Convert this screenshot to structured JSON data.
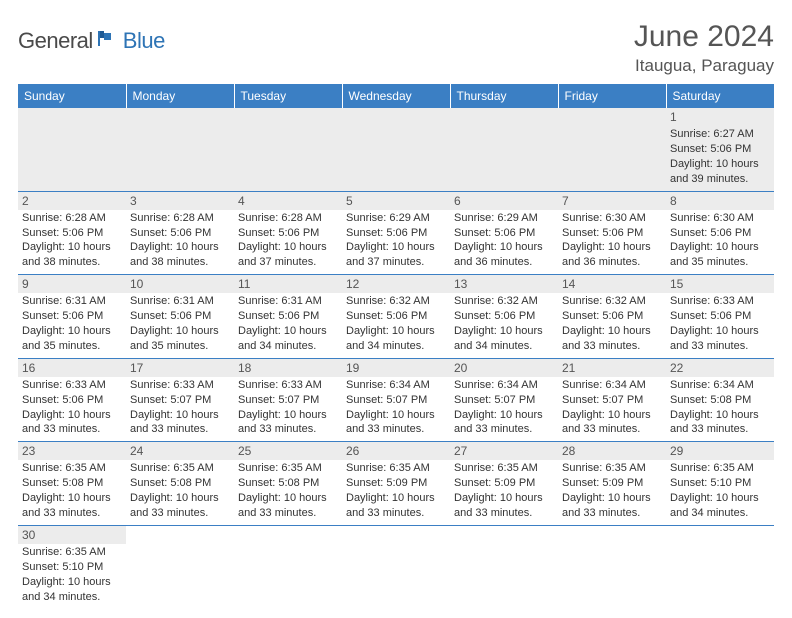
{
  "brand": {
    "part1": "General",
    "part2": "Blue"
  },
  "title": "June 2024",
  "location": "Itaugua, Paraguay",
  "header_bg": "#3b7fc4",
  "days": [
    "Sunday",
    "Monday",
    "Tuesday",
    "Wednesday",
    "Thursday",
    "Friday",
    "Saturday"
  ],
  "weeks": [
    [
      null,
      null,
      null,
      null,
      null,
      null,
      {
        "n": "1",
        "sr": "Sunrise: 6:27 AM",
        "ss": "Sunset: 5:06 PM",
        "d1": "Daylight: 10 hours",
        "d2": "and 39 minutes."
      }
    ],
    [
      {
        "n": "2",
        "sr": "Sunrise: 6:28 AM",
        "ss": "Sunset: 5:06 PM",
        "d1": "Daylight: 10 hours",
        "d2": "and 38 minutes."
      },
      {
        "n": "3",
        "sr": "Sunrise: 6:28 AM",
        "ss": "Sunset: 5:06 PM",
        "d1": "Daylight: 10 hours",
        "d2": "and 38 minutes."
      },
      {
        "n": "4",
        "sr": "Sunrise: 6:28 AM",
        "ss": "Sunset: 5:06 PM",
        "d1": "Daylight: 10 hours",
        "d2": "and 37 minutes."
      },
      {
        "n": "5",
        "sr": "Sunrise: 6:29 AM",
        "ss": "Sunset: 5:06 PM",
        "d1": "Daylight: 10 hours",
        "d2": "and 37 minutes."
      },
      {
        "n": "6",
        "sr": "Sunrise: 6:29 AM",
        "ss": "Sunset: 5:06 PM",
        "d1": "Daylight: 10 hours",
        "d2": "and 36 minutes."
      },
      {
        "n": "7",
        "sr": "Sunrise: 6:30 AM",
        "ss": "Sunset: 5:06 PM",
        "d1": "Daylight: 10 hours",
        "d2": "and 36 minutes."
      },
      {
        "n": "8",
        "sr": "Sunrise: 6:30 AM",
        "ss": "Sunset: 5:06 PM",
        "d1": "Daylight: 10 hours",
        "d2": "and 35 minutes."
      }
    ],
    [
      {
        "n": "9",
        "sr": "Sunrise: 6:31 AM",
        "ss": "Sunset: 5:06 PM",
        "d1": "Daylight: 10 hours",
        "d2": "and 35 minutes."
      },
      {
        "n": "10",
        "sr": "Sunrise: 6:31 AM",
        "ss": "Sunset: 5:06 PM",
        "d1": "Daylight: 10 hours",
        "d2": "and 35 minutes."
      },
      {
        "n": "11",
        "sr": "Sunrise: 6:31 AM",
        "ss": "Sunset: 5:06 PM",
        "d1": "Daylight: 10 hours",
        "d2": "and 34 minutes."
      },
      {
        "n": "12",
        "sr": "Sunrise: 6:32 AM",
        "ss": "Sunset: 5:06 PM",
        "d1": "Daylight: 10 hours",
        "d2": "and 34 minutes."
      },
      {
        "n": "13",
        "sr": "Sunrise: 6:32 AM",
        "ss": "Sunset: 5:06 PM",
        "d1": "Daylight: 10 hours",
        "d2": "and 34 minutes."
      },
      {
        "n": "14",
        "sr": "Sunrise: 6:32 AM",
        "ss": "Sunset: 5:06 PM",
        "d1": "Daylight: 10 hours",
        "d2": "and 33 minutes."
      },
      {
        "n": "15",
        "sr": "Sunrise: 6:33 AM",
        "ss": "Sunset: 5:06 PM",
        "d1": "Daylight: 10 hours",
        "d2": "and 33 minutes."
      }
    ],
    [
      {
        "n": "16",
        "sr": "Sunrise: 6:33 AM",
        "ss": "Sunset: 5:06 PM",
        "d1": "Daylight: 10 hours",
        "d2": "and 33 minutes."
      },
      {
        "n": "17",
        "sr": "Sunrise: 6:33 AM",
        "ss": "Sunset: 5:07 PM",
        "d1": "Daylight: 10 hours",
        "d2": "and 33 minutes."
      },
      {
        "n": "18",
        "sr": "Sunrise: 6:33 AM",
        "ss": "Sunset: 5:07 PM",
        "d1": "Daylight: 10 hours",
        "d2": "and 33 minutes."
      },
      {
        "n": "19",
        "sr": "Sunrise: 6:34 AM",
        "ss": "Sunset: 5:07 PM",
        "d1": "Daylight: 10 hours",
        "d2": "and 33 minutes."
      },
      {
        "n": "20",
        "sr": "Sunrise: 6:34 AM",
        "ss": "Sunset: 5:07 PM",
        "d1": "Daylight: 10 hours",
        "d2": "and 33 minutes."
      },
      {
        "n": "21",
        "sr": "Sunrise: 6:34 AM",
        "ss": "Sunset: 5:07 PM",
        "d1": "Daylight: 10 hours",
        "d2": "and 33 minutes."
      },
      {
        "n": "22",
        "sr": "Sunrise: 6:34 AM",
        "ss": "Sunset: 5:08 PM",
        "d1": "Daylight: 10 hours",
        "d2": "and 33 minutes."
      }
    ],
    [
      {
        "n": "23",
        "sr": "Sunrise: 6:35 AM",
        "ss": "Sunset: 5:08 PM",
        "d1": "Daylight: 10 hours",
        "d2": "and 33 minutes."
      },
      {
        "n": "24",
        "sr": "Sunrise: 6:35 AM",
        "ss": "Sunset: 5:08 PM",
        "d1": "Daylight: 10 hours",
        "d2": "and 33 minutes."
      },
      {
        "n": "25",
        "sr": "Sunrise: 6:35 AM",
        "ss": "Sunset: 5:08 PM",
        "d1": "Daylight: 10 hours",
        "d2": "and 33 minutes."
      },
      {
        "n": "26",
        "sr": "Sunrise: 6:35 AM",
        "ss": "Sunset: 5:09 PM",
        "d1": "Daylight: 10 hours",
        "d2": "and 33 minutes."
      },
      {
        "n": "27",
        "sr": "Sunrise: 6:35 AM",
        "ss": "Sunset: 5:09 PM",
        "d1": "Daylight: 10 hours",
        "d2": "and 33 minutes."
      },
      {
        "n": "28",
        "sr": "Sunrise: 6:35 AM",
        "ss": "Sunset: 5:09 PM",
        "d1": "Daylight: 10 hours",
        "d2": "and 33 minutes."
      },
      {
        "n": "29",
        "sr": "Sunrise: 6:35 AM",
        "ss": "Sunset: 5:10 PM",
        "d1": "Daylight: 10 hours",
        "d2": "and 34 minutes."
      }
    ],
    [
      {
        "n": "30",
        "sr": "Sunrise: 6:35 AM",
        "ss": "Sunset: 5:10 PM",
        "d1": "Daylight: 10 hours",
        "d2": "and 34 minutes."
      },
      null,
      null,
      null,
      null,
      null,
      null
    ]
  ]
}
